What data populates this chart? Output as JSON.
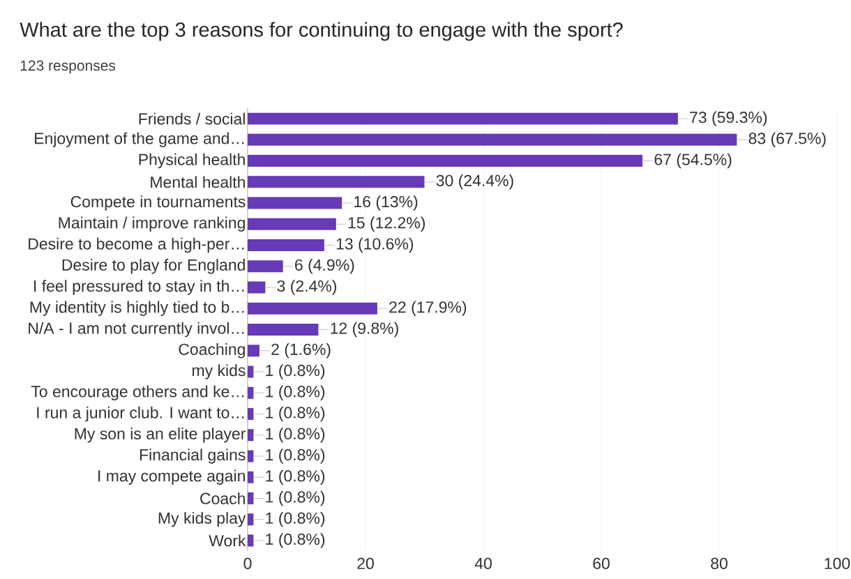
{
  "chart_data": {
    "type": "bar",
    "orientation": "horizontal",
    "title": "What are the top 3 reasons for continuing to engage with the sport?",
    "subtitle": "123 responses",
    "categories": [
      "Friends / social",
      "Enjoyment of the game and…",
      "Physical health",
      "Mental health",
      "Compete in tournaments",
      "Maintain / improve ranking",
      "Desire to become a high-per…",
      "Desire to play for England",
      "I feel pressured to stay in th…",
      "My identity is highly tied to b…",
      "N/A - I am not currently invol…",
      "Coaching",
      "my kids",
      "To encourage others and ke…",
      "I run a junior club. I want to…",
      "My son is an elite player",
      "Financial gains",
      "I may compete again",
      "Coach",
      "My kids play",
      "Work"
    ],
    "values": [
      73,
      83,
      67,
      30,
      16,
      15,
      13,
      6,
      3,
      22,
      12,
      2,
      1,
      1,
      1,
      1,
      1,
      1,
      1,
      1,
      1
    ],
    "value_labels": [
      "73 (59.3%)",
      "83 (67.5%)",
      "67 (54.5%)",
      "30 (24.4%)",
      "16 (13%)",
      "15 (12.2%)",
      "13 (10.6%)",
      "6 (4.9%)",
      "3 (2.4%)",
      "22 (17.9%)",
      "12 (9.8%)",
      "2 (1.6%)",
      "1 (0.8%)",
      "1 (0.8%)",
      "1 (0.8%)",
      "1 (0.8%)",
      "1 (0.8%)",
      "1 (0.8%)",
      "1 (0.8%)",
      "1 (0.8%)",
      "1 (0.8%)"
    ],
    "color": "#673ab7",
    "xlim": [
      0,
      100
    ],
    "xticks": [
      0,
      20,
      40,
      60,
      80,
      100
    ],
    "grid": "x"
  }
}
